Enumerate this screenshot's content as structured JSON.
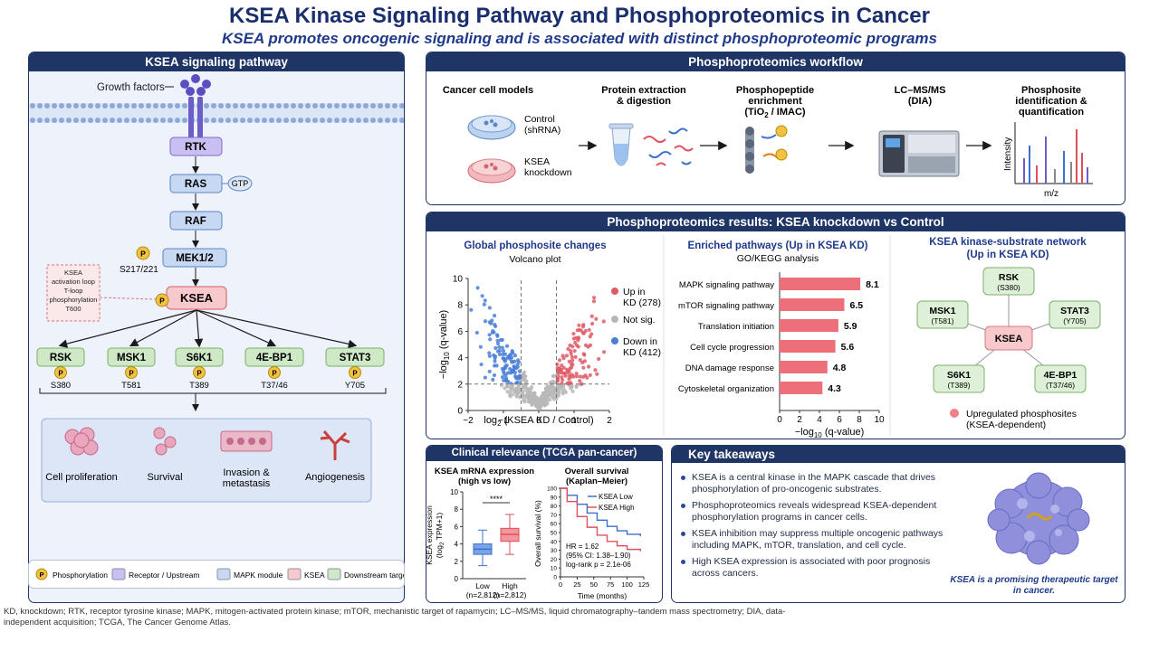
{
  "header": {
    "title": "KSEA Kinase Signaling Pathway and Phosphoproteomics in Cancer",
    "subtitle": "KSEA promotes oncogenic signaling and is associated with distinct phosphoproteomic programs"
  },
  "pathway": {
    "heading": "KSEA signaling pathway",
    "growth_factors": "Growth factors",
    "nodes": {
      "rtk": "RTK",
      "ras": "RAS",
      "gtp": "GTP",
      "raf": "RAF",
      "mek": "MEK1/2",
      "mek_site": "S217/221",
      "ksea": "KSEA"
    },
    "note": [
      "KSEA",
      "activation loop",
      "T-loop",
      "phosphorylation",
      "T600"
    ],
    "phospho_label": "P",
    "targets": [
      {
        "name": "RSK",
        "site": "S380"
      },
      {
        "name": "MSK1",
        "site": "T581"
      },
      {
        "name": "S6K1",
        "site": "T389"
      },
      {
        "name": "4E-BP1",
        "site": "T37/46"
      },
      {
        "name": "STAT3",
        "site": "Y705"
      }
    ],
    "outcomes": [
      {
        "label": "Cell proliferation"
      },
      {
        "label": "Survival"
      },
      {
        "label": "Invasion &\nmetastasis"
      },
      {
        "label": "Angiogenesis"
      }
    ]
  },
  "legend": {
    "items": [
      {
        "label": "Phosphorylation",
        "color": "#f3c340"
      },
      {
        "label": "Receptor / Upstream",
        "color": "#c9bff0"
      },
      {
        "label": "MAPK module",
        "color": "#c6d8f2"
      },
      {
        "label": "KSEA",
        "color": "#f7c8cc"
      },
      {
        "label": "Downstream targets",
        "color": "#cfe8c6"
      }
    ]
  },
  "workflow": {
    "heading": "Phosphoproteomics workflow",
    "steps": [
      {
        "title": "Cancer cell models"
      },
      {
        "title": "Protein extraction\n& digestion"
      },
      {
        "title": "Phosphopeptide\nenrichment\n(TiO2 / IMAC)"
      },
      {
        "title": "LC–MS/MS\n(DIA)"
      },
      {
        "title": "Phosphosite\nidentification &\nquantification"
      }
    ],
    "control": "Control\n(shRNA)",
    "knockdown": "KSEA\nknockdown",
    "intensity": "Intensity",
    "mz": "m/z"
  },
  "results": {
    "heading": "Phosphoproteomics results: KSEA knockdown vs Control",
    "volcano": {
      "title": "Global phosphosite changes",
      "subtitle": "Volcano plot",
      "xlabel": "log2 (KSEA KD / Control)",
      "ylabel": "−log10 (q-value)",
      "xticks": [
        "−2",
        "−1",
        "0",
        "1",
        "2"
      ],
      "yticks": [
        "0",
        "2",
        "4",
        "6",
        "8",
        "10"
      ],
      "legend": [
        {
          "label": "Up in\nKD (278)",
          "color": "#e05a66"
        },
        {
          "label": "Not sig.",
          "color": "#b8b8b8"
        },
        {
          "label": "Down in\nKD (412)",
          "color": "#4a7fd8"
        }
      ]
    },
    "pathways": {
      "title": "Enriched pathways (Up in KSEA KD)",
      "subtitle": "GO/KEGG analysis",
      "xlabel": "−log10 (q-value)",
      "xticks": [
        "0",
        "2",
        "4",
        "6",
        "8",
        "10"
      ],
      "items": [
        {
          "name": "MAPK signaling pathway",
          "value": 8.1
        },
        {
          "name": "mTOR signaling pathway",
          "value": 6.5
        },
        {
          "name": "Translation initiation",
          "value": 5.9
        },
        {
          "name": "Cell cycle progression",
          "value": 5.6
        },
        {
          "name": "DNA damage response",
          "value": 4.8
        },
        {
          "name": "Cytoskeletal organization",
          "value": 4.3
        }
      ],
      "value_labels": [
        "8.1",
        "6.5",
        "5.9",
        "5.6",
        "4.8",
        "4.3"
      ]
    },
    "network": {
      "title": "KSEA kinase-substrate network\n(Up in KSEA KD)",
      "center": "KSEA",
      "nodes": [
        {
          "name": "RSK",
          "site": "(S380)"
        },
        {
          "name": "MSK1",
          "site": "(T581)"
        },
        {
          "name": "STAT3",
          "site": "(Y705)"
        },
        {
          "name": "S6K1",
          "site": "(T389)"
        },
        {
          "name": "4E-BP1",
          "site": "(T37/46)"
        }
      ],
      "legend": "Upregulated phosphosites\n(KSEA-dependent)"
    }
  },
  "clinical": {
    "heading": "Clinical relevance (TCGA pan-cancer)",
    "box": {
      "title": "KSEA mRNA expression\n(high vs low)",
      "ylabel": "KSEA expression\n(log2 TPM+1)",
      "yticks": [
        "0",
        "2",
        "4",
        "6",
        "8",
        "10"
      ],
      "sig": "****",
      "groups": [
        {
          "label": "Low\n(n=2,812)"
        },
        {
          "label": "High\n(n=2,812)"
        }
      ]
    },
    "km": {
      "title": "Overall survival\n(Kaplan–Meier)",
      "ylabel": "Overall survival (%)",
      "xlabel": "Time (months)",
      "xticks": [
        "0",
        "25",
        "50",
        "75",
        "100",
        "125"
      ],
      "yticks": [
        "0",
        "10",
        "20",
        "30",
        "40",
        "50",
        "60",
        "70",
        "80",
        "90",
        "100"
      ],
      "legend": [
        {
          "label": "KSEA Low",
          "color": "#3a6fd0"
        },
        {
          "label": "KSEA High",
          "color": "#e0505c"
        }
      ],
      "stats": [
        "HR = 1.62",
        "(95% CI: 1.38–1.90)",
        "log-rank p = 2.1e-06"
      ]
    }
  },
  "takeaways": {
    "heading": "Key takeaways",
    "items": [
      "KSEA is a central kinase in the MAPK cascade that drives phosphorylation of pro-oncogenic substrates.",
      "Phosphoproteomics reveals widespread KSEA-dependent phosphorylation programs in cancer cells.",
      "KSEA inhibition may suppress multiple oncogenic pathways including MAPK, mTOR, translation, and cell cycle.",
      "High KSEA expression is associated with poor prognosis across cancers."
    ],
    "caption": "KSEA is a promising therapeutic target\nin cancer."
  },
  "footnote": "KD, knockdown; RTK, receptor tyrosine kinase; MAPK, mitogen-activated protein kinase; mTOR, mechanistic target of rapamycin; LC–MS/MS, liquid chromatography–tandem mass spectrometry; DIA, data-independent acquisition; TCGA, The Cancer Genome Atlas."
}
